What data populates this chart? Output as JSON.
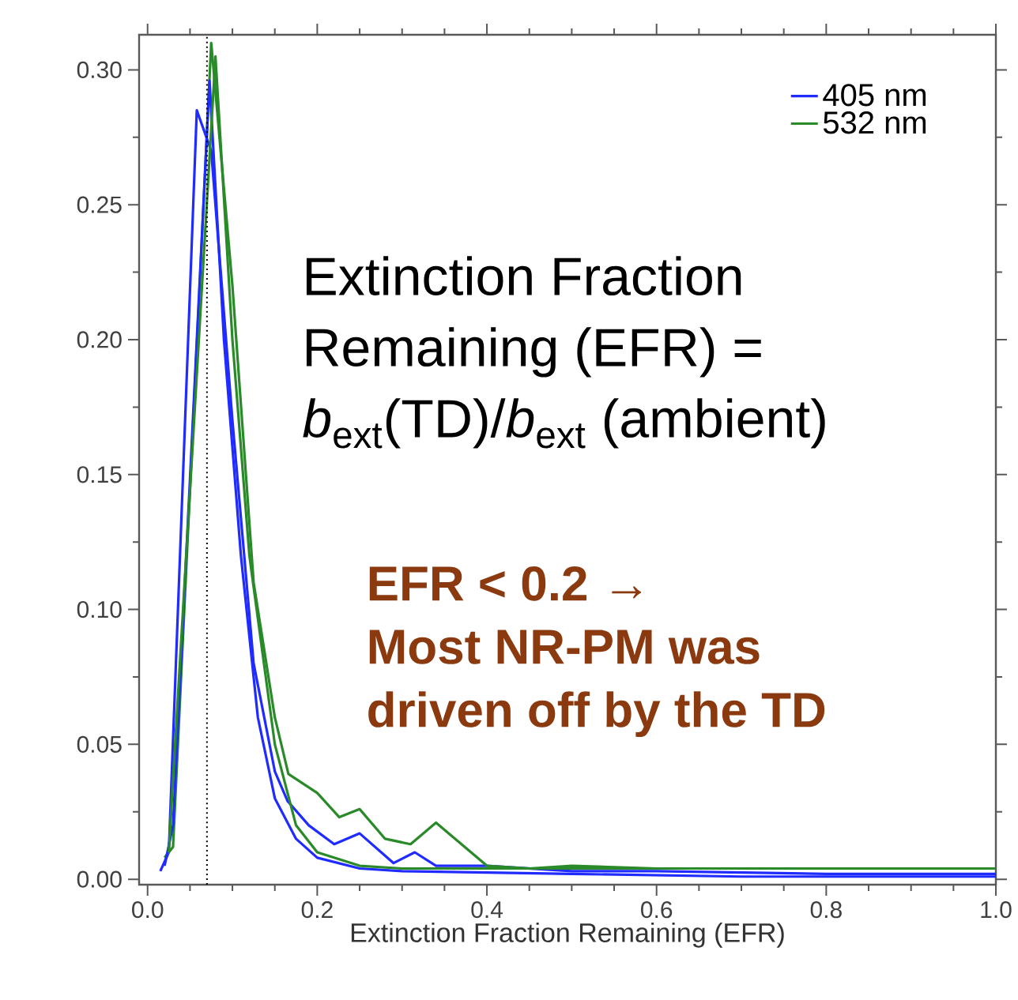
{
  "chart_data": {
    "type": "line",
    "xlabel": "Extinction Fraction Remaining (EFR)",
    "xlim": [
      -0.01,
      1.0
    ],
    "ylim": [
      -0.002,
      0.313
    ],
    "xticks": [
      {
        "value": 0,
        "label": "0.0"
      },
      {
        "value": 0.2,
        "label": "0.2"
      },
      {
        "value": 0.4,
        "label": "0.4"
      },
      {
        "value": 0.6,
        "label": "0.6"
      },
      {
        "value": 0.8,
        "label": "0.8"
      },
      {
        "value": 1.0,
        "label": "1.0"
      }
    ],
    "yticks": [
      {
        "value": 0,
        "label": "0.00"
      },
      {
        "value": 0.05,
        "label": "0.05"
      },
      {
        "value": 0.1,
        "label": "0.10"
      },
      {
        "value": 0.15,
        "label": "0.15"
      },
      {
        "value": 0.2,
        "label": "0.20"
      },
      {
        "value": 0.25,
        "label": "0.25"
      },
      {
        "value": 0.3,
        "label": "0.30"
      }
    ],
    "legend": "top right",
    "line_style": "solid",
    "series": [
      {
        "name": "405 nm",
        "color": "#1f2bff",
        "x": [
          0.015,
          0.025,
          0.058,
          0.075,
          0.1,
          0.125,
          0.15,
          0.165,
          0.19,
          0.22,
          0.25,
          0.29,
          0.315,
          0.34,
          0.4,
          0.5,
          0.6,
          0.8,
          1.0
        ],
        "values": [
          0.003,
          0.01,
          0.285,
          0.27,
          0.17,
          0.08,
          0.04,
          0.029,
          0.02,
          0.013,
          0.017,
          0.006,
          0.01,
          0.005,
          0.005,
          0.003,
          0.003,
          0.002,
          0.002
        ]
      },
      {
        "name": "532 nm",
        "color": "#2a8a2a",
        "x": [
          0.02,
          0.03,
          0.075,
          0.1,
          0.125,
          0.15,
          0.166,
          0.2,
          0.226,
          0.25,
          0.28,
          0.31,
          0.34,
          0.4,
          0.45,
          0.5,
          0.6,
          0.8,
          1.0
        ],
        "values": [
          0.008,
          0.012,
          0.31,
          0.22,
          0.11,
          0.06,
          0.039,
          0.032,
          0.023,
          0.026,
          0.015,
          0.013,
          0.021,
          0.005,
          0.004,
          0.005,
          0.004,
          0.004,
          0.004
        ]
      },
      {
        "color": "#1f2bff",
        "x": [
          0.02,
          0.03,
          0.073,
          0.09,
          0.11,
          0.13,
          0.15,
          0.175,
          0.2,
          0.25,
          0.3,
          0.5,
          0.7,
          1.0
        ],
        "values": [
          0.005,
          0.02,
          0.296,
          0.2,
          0.12,
          0.06,
          0.03,
          0.015,
          0.008,
          0.004,
          0.003,
          0.002,
          0.001,
          0.001
        ]
      },
      {
        "color": "#2a8a2a",
        "x": [
          0.025,
          0.08,
          0.1,
          0.12,
          0.15,
          0.175,
          0.2,
          0.25,
          0.3,
          0.5,
          1.0
        ],
        "values": [
          0.01,
          0.305,
          0.2,
          0.12,
          0.05,
          0.02,
          0.01,
          0.005,
          0.004,
          0.004,
          0.004
        ]
      }
    ],
    "ref_lines": [
      {
        "axis": "x",
        "value": 0.07,
        "color": "#000000",
        "line_style": "dotted"
      }
    ],
    "annotations": [
      "Extinction Fraction Remaining (EFR) = *b*$_{ext}$(TD)/*b*$_{ext}$ (ambient)",
      "EFR < 0.2 →",
      "Most NR-PM was driven off by the TD"
    ]
  }
}
